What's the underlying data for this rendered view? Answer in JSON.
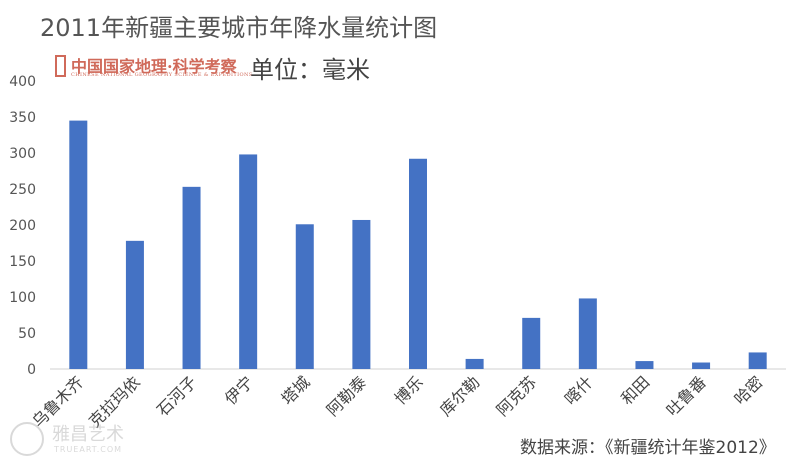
{
  "title": "2011年新疆主要城市年降水量统计图",
  "unit": "单位：毫米",
  "source": "数据来源：《新疆统计年鉴2012》",
  "logo": {
    "main": "中国国家地理·科学考察",
    "sub": "CHINESE NATIONAL GEOGRAPHY SCIENCE & EXPEDITIONS",
    "color": "#d06a5a"
  },
  "watermark": {
    "text": "雅昌艺术",
    "sub": "TRUEART.COM"
  },
  "chart_data": {
    "type": "bar",
    "categories": [
      "乌鲁木齐",
      "克拉玛依",
      "石河子",
      "伊宁",
      "塔城",
      "阿勒泰",
      "博乐",
      "库尔勒",
      "阿克苏",
      "喀什",
      "和田",
      "吐鲁番",
      "哈密"
    ],
    "values": [
      345,
      178,
      253,
      298,
      201,
      207,
      292,
      14,
      71,
      98,
      11,
      9,
      23
    ],
    "ylim": [
      0,
      400
    ],
    "yticks": [
      0,
      50,
      100,
      150,
      200,
      250,
      300,
      350,
      400
    ],
    "grid": false,
    "legend": "none",
    "bar_color": "#4472c4"
  }
}
